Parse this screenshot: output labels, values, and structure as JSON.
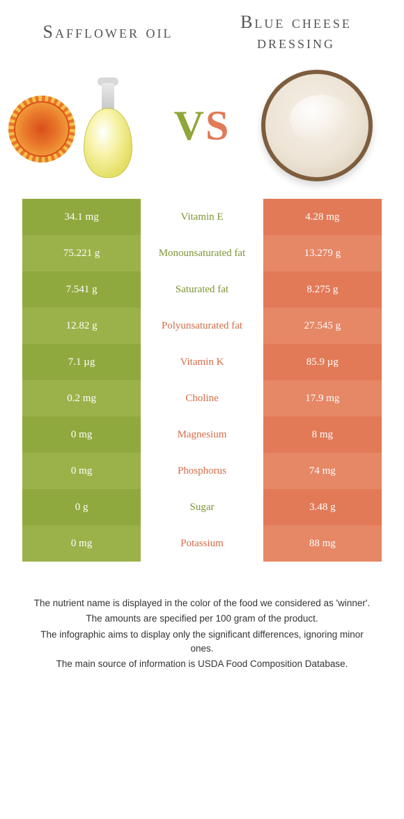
{
  "titles": {
    "left": "Safflower oil",
    "right": "Blue cheese dressing"
  },
  "vs": {
    "v": "V",
    "s": "S"
  },
  "colors": {
    "green_dark": "#90a93e",
    "green_light": "#9bb24a",
    "orange_dark": "#e27a57",
    "orange_light": "#e68766",
    "mid_green_text": "#7d9434",
    "mid_orange_text": "#d56b47"
  },
  "rows": [
    {
      "label": "Vitamin E",
      "left": "34.1 mg",
      "right": "4.28 mg",
      "winner": "left"
    },
    {
      "label": "Monounsaturated fat",
      "left": "75.221 g",
      "right": "13.279 g",
      "winner": "left"
    },
    {
      "label": "Saturated fat",
      "left": "7.541 g",
      "right": "8.275 g",
      "winner": "left"
    },
    {
      "label": "Polyunsaturated fat",
      "left": "12.82 g",
      "right": "27.545 g",
      "winner": "right"
    },
    {
      "label": "Vitamin K",
      "left": "7.1 µg",
      "right": "85.9 µg",
      "winner": "right"
    },
    {
      "label": "Choline",
      "left": "0.2 mg",
      "right": "17.9 mg",
      "winner": "right"
    },
    {
      "label": "Magnesium",
      "left": "0 mg",
      "right": "8 mg",
      "winner": "right"
    },
    {
      "label": "Phosphorus",
      "left": "0 mg",
      "right": "74 mg",
      "winner": "right"
    },
    {
      "label": "Sugar",
      "left": "0 g",
      "right": "3.48 g",
      "winner": "left"
    },
    {
      "label": "Potassium",
      "left": "0 mg",
      "right": "88 mg",
      "winner": "right"
    }
  ],
  "footer": [
    "The nutrient name is displayed in the color of the food we considered as 'winner'.",
    "The amounts are specified per 100 gram of the product.",
    "The infographic aims to display only the significant differences, ignoring minor ones.",
    "The main source of information is USDA Food Composition Database."
  ]
}
